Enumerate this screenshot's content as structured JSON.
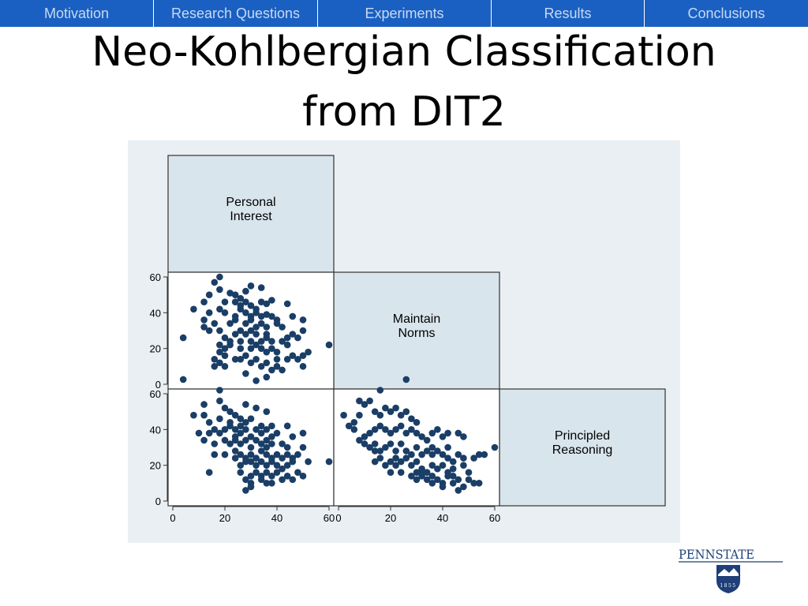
{
  "nav": {
    "tabs": [
      {
        "label": "Motivation",
        "width": 195
      },
      {
        "label": "Research Questions",
        "width": 208
      },
      {
        "label": "Experiments",
        "width": 220
      },
      {
        "label": "Results",
        "width": 194
      },
      {
        "label": "Conclusions",
        "width": 207
      }
    ]
  },
  "slide": {
    "title_line1": "Neo-Kohlbergian Classification",
    "title_line2": "from DIT2"
  },
  "logo": {
    "text": "PENNSTATE",
    "year": "1855"
  },
  "chart_data": {
    "type": "scatter-matrix",
    "variables": [
      "Personal Interest",
      "Maintain Norms",
      "Principled Reasoning"
    ],
    "diagonal_labels": [
      [
        "Personal",
        "Interest"
      ],
      [
        "Maintain",
        "Norms"
      ],
      [
        "Principled",
        "Reasoning"
      ]
    ],
    "axis_ticks": [
      0,
      20,
      40,
      60
    ],
    "axis_range": [
      0,
      60
    ],
    "panels": [
      {
        "x_var": "Personal Interest",
        "y_var": "Maintain Norms",
        "points": [
          [
            18,
            60
          ],
          [
            16,
            57
          ],
          [
            18,
            53
          ],
          [
            22,
            51
          ],
          [
            24,
            50
          ],
          [
            26,
            48
          ],
          [
            28,
            52
          ],
          [
            30,
            55
          ],
          [
            34,
            54
          ],
          [
            14,
            50
          ],
          [
            12,
            46
          ],
          [
            20,
            46
          ],
          [
            24,
            46
          ],
          [
            26,
            44
          ],
          [
            28,
            46
          ],
          [
            30,
            44
          ],
          [
            32,
            42
          ],
          [
            34,
            46
          ],
          [
            36,
            45
          ],
          [
            38,
            47
          ],
          [
            44,
            45
          ],
          [
            8,
            42
          ],
          [
            14,
            40
          ],
          [
            18,
            42
          ],
          [
            20,
            40
          ],
          [
            24,
            38
          ],
          [
            26,
            42
          ],
          [
            28,
            40
          ],
          [
            30,
            38
          ],
          [
            32,
            40
          ],
          [
            34,
            38
          ],
          [
            36,
            39
          ],
          [
            38,
            38
          ],
          [
            40,
            36
          ],
          [
            46,
            38
          ],
          [
            50,
            36
          ],
          [
            12,
            36
          ],
          [
            16,
            34
          ],
          [
            22,
            34
          ],
          [
            24,
            36
          ],
          [
            28,
            34
          ],
          [
            30,
            36
          ],
          [
            32,
            32
          ],
          [
            34,
            34
          ],
          [
            36,
            32
          ],
          [
            40,
            34
          ],
          [
            42,
            32
          ],
          [
            12,
            32
          ],
          [
            14,
            30
          ],
          [
            18,
            30
          ],
          [
            24,
            28
          ],
          [
            26,
            30
          ],
          [
            28,
            28
          ],
          [
            30,
            30
          ],
          [
            32,
            28
          ],
          [
            36,
            28
          ],
          [
            44,
            26
          ],
          [
            46,
            28
          ],
          [
            48,
            26
          ],
          [
            50,
            30
          ],
          [
            4,
            26
          ],
          [
            20,
            26
          ],
          [
            22,
            24
          ],
          [
            26,
            24
          ],
          [
            30,
            24
          ],
          [
            34,
            24
          ],
          [
            36,
            26
          ],
          [
            38,
            24
          ],
          [
            42,
            24
          ],
          [
            44,
            22
          ],
          [
            18,
            22
          ],
          [
            20,
            20
          ],
          [
            22,
            22
          ],
          [
            26,
            20
          ],
          [
            30,
            20
          ],
          [
            32,
            22
          ],
          [
            34,
            20
          ],
          [
            36,
            18
          ],
          [
            38,
            20
          ],
          [
            40,
            18
          ],
          [
            52,
            18
          ],
          [
            60,
            22
          ],
          [
            18,
            18
          ],
          [
            16,
            14
          ],
          [
            20,
            16
          ],
          [
            24,
            14
          ],
          [
            28,
            16
          ],
          [
            32,
            14
          ],
          [
            36,
            12
          ],
          [
            40,
            14
          ],
          [
            44,
            14
          ],
          [
            46,
            16
          ],
          [
            48,
            14
          ],
          [
            50,
            10
          ],
          [
            18,
            12
          ],
          [
            26,
            14
          ],
          [
            30,
            12
          ],
          [
            34,
            10
          ],
          [
            38,
            8
          ],
          [
            42,
            8
          ],
          [
            16,
            10
          ],
          [
            20,
            10
          ],
          [
            28,
            6
          ],
          [
            36,
            4
          ],
          [
            32,
            2
          ],
          [
            40,
            10
          ],
          [
            50,
            16
          ]
        ]
      },
      {
        "x_var": "Personal Interest",
        "y_var": "Principled Reasoning",
        "points": [
          [
            4,
            68
          ],
          [
            8,
            48
          ],
          [
            12,
            48
          ],
          [
            12,
            54
          ],
          [
            18,
            56
          ],
          [
            18,
            62
          ],
          [
            20,
            52
          ],
          [
            22,
            50
          ],
          [
            24,
            48
          ],
          [
            26,
            46
          ],
          [
            28,
            54
          ],
          [
            32,
            52
          ],
          [
            36,
            50
          ],
          [
            14,
            44
          ],
          [
            18,
            46
          ],
          [
            22,
            44
          ],
          [
            24,
            40
          ],
          [
            26,
            42
          ],
          [
            28,
            44
          ],
          [
            30,
            46
          ],
          [
            34,
            42
          ],
          [
            36,
            40
          ],
          [
            38,
            42
          ],
          [
            44,
            42
          ],
          [
            10,
            38
          ],
          [
            14,
            38
          ],
          [
            16,
            40
          ],
          [
            18,
            38
          ],
          [
            20,
            40
          ],
          [
            22,
            42
          ],
          [
            24,
            36
          ],
          [
            26,
            38
          ],
          [
            28,
            40
          ],
          [
            30,
            36
          ],
          [
            32,
            40
          ],
          [
            34,
            38
          ],
          [
            36,
            34
          ],
          [
            38,
            36
          ],
          [
            40,
            38
          ],
          [
            46,
            36
          ],
          [
            50,
            38
          ],
          [
            12,
            34
          ],
          [
            16,
            32
          ],
          [
            20,
            34
          ],
          [
            22,
            32
          ],
          [
            24,
            34
          ],
          [
            26,
            32
          ],
          [
            28,
            34
          ],
          [
            30,
            30
          ],
          [
            32,
            34
          ],
          [
            34,
            32
          ],
          [
            36,
            30
          ],
          [
            38,
            32
          ],
          [
            42,
            32
          ],
          [
            44,
            30
          ],
          [
            50,
            30
          ],
          [
            16,
            26
          ],
          [
            20,
            26
          ],
          [
            24,
            28
          ],
          [
            26,
            26
          ],
          [
            28,
            24
          ],
          [
            30,
            26
          ],
          [
            32,
            24
          ],
          [
            34,
            28
          ],
          [
            36,
            26
          ],
          [
            38,
            24
          ],
          [
            40,
            26
          ],
          [
            42,
            24
          ],
          [
            44,
            26
          ],
          [
            46,
            24
          ],
          [
            48,
            26
          ],
          [
            24,
            24
          ],
          [
            26,
            20
          ],
          [
            28,
            22
          ],
          [
            30,
            22
          ],
          [
            32,
            20
          ],
          [
            34,
            22
          ],
          [
            36,
            20
          ],
          [
            38,
            22
          ],
          [
            40,
            20
          ],
          [
            44,
            20
          ],
          [
            46,
            22
          ],
          [
            52,
            22
          ],
          [
            60,
            22
          ],
          [
            14,
            16
          ],
          [
            26,
            16
          ],
          [
            30,
            14
          ],
          [
            32,
            16
          ],
          [
            34,
            14
          ],
          [
            36,
            16
          ],
          [
            38,
            14
          ],
          [
            40,
            16
          ],
          [
            44,
            14
          ],
          [
            48,
            16
          ],
          [
            28,
            12
          ],
          [
            30,
            10
          ],
          [
            34,
            12
          ],
          [
            36,
            10
          ],
          [
            42,
            12
          ],
          [
            46,
            12
          ],
          [
            50,
            14
          ],
          [
            28,
            6
          ],
          [
            30,
            8
          ],
          [
            38,
            10
          ],
          [
            42,
            18
          ]
        ]
      },
      {
        "x_var": "Maintain Norms",
        "y_var": "Principled Reasoning",
        "points": [
          [
            26,
            68
          ],
          [
            2,
            48
          ],
          [
            4,
            42
          ],
          [
            6,
            44
          ],
          [
            8,
            48
          ],
          [
            8,
            56
          ],
          [
            10,
            54
          ],
          [
            12,
            56
          ],
          [
            14,
            50
          ],
          [
            16,
            48
          ],
          [
            16,
            62
          ],
          [
            18,
            52
          ],
          [
            20,
            50
          ],
          [
            22,
            52
          ],
          [
            24,
            48
          ],
          [
            26,
            50
          ],
          [
            28,
            46
          ],
          [
            30,
            44
          ],
          [
            6,
            40
          ],
          [
            8,
            34
          ],
          [
            10,
            36
          ],
          [
            12,
            38
          ],
          [
            14,
            40
          ],
          [
            16,
            42
          ],
          [
            18,
            40
          ],
          [
            20,
            38
          ],
          [
            22,
            40
          ],
          [
            24,
            42
          ],
          [
            26,
            38
          ],
          [
            28,
            40
          ],
          [
            30,
            38
          ],
          [
            32,
            36
          ],
          [
            34,
            34
          ],
          [
            36,
            38
          ],
          [
            38,
            40
          ],
          [
            40,
            36
          ],
          [
            42,
            38
          ],
          [
            46,
            38
          ],
          [
            48,
            36
          ],
          [
            10,
            32
          ],
          [
            12,
            30
          ],
          [
            14,
            32
          ],
          [
            16,
            28
          ],
          [
            18,
            30
          ],
          [
            20,
            32
          ],
          [
            22,
            28
          ],
          [
            24,
            32
          ],
          [
            26,
            28
          ],
          [
            28,
            26
          ],
          [
            30,
            30
          ],
          [
            32,
            26
          ],
          [
            34,
            28
          ],
          [
            36,
            26
          ],
          [
            38,
            28
          ],
          [
            40,
            26
          ],
          [
            42,
            24
          ],
          [
            44,
            22
          ],
          [
            46,
            26
          ],
          [
            48,
            24
          ],
          [
            52,
            24
          ],
          [
            54,
            26
          ],
          [
            56,
            26
          ],
          [
            60,
            30
          ],
          [
            14,
            22
          ],
          [
            16,
            24
          ],
          [
            18,
            20
          ],
          [
            20,
            22
          ],
          [
            22,
            24
          ],
          [
            24,
            22
          ],
          [
            26,
            24
          ],
          [
            28,
            20
          ],
          [
            30,
            22
          ],
          [
            32,
            18
          ],
          [
            34,
            16
          ],
          [
            36,
            20
          ],
          [
            38,
            18
          ],
          [
            40,
            20
          ],
          [
            42,
            16
          ],
          [
            44,
            18
          ],
          [
            48,
            20
          ],
          [
            14,
            28
          ],
          [
            20,
            16
          ],
          [
            28,
            14
          ],
          [
            30,
            12
          ],
          [
            32,
            14
          ],
          [
            34,
            12
          ],
          [
            36,
            14
          ],
          [
            38,
            12
          ],
          [
            40,
            10
          ],
          [
            42,
            14
          ],
          [
            44,
            10
          ],
          [
            46,
            12
          ],
          [
            48,
            8
          ],
          [
            50,
            12
          ],
          [
            52,
            10
          ],
          [
            54,
            10
          ],
          [
            32,
            16
          ],
          [
            44,
            14
          ],
          [
            40,
            8
          ],
          [
            46,
            6
          ],
          [
            50,
            16
          ],
          [
            36,
            10
          ],
          [
            24,
            16
          ],
          [
            22,
            20
          ],
          [
            30,
            16
          ],
          [
            36,
            30
          ],
          [
            42,
            30
          ]
        ]
      }
    ]
  }
}
